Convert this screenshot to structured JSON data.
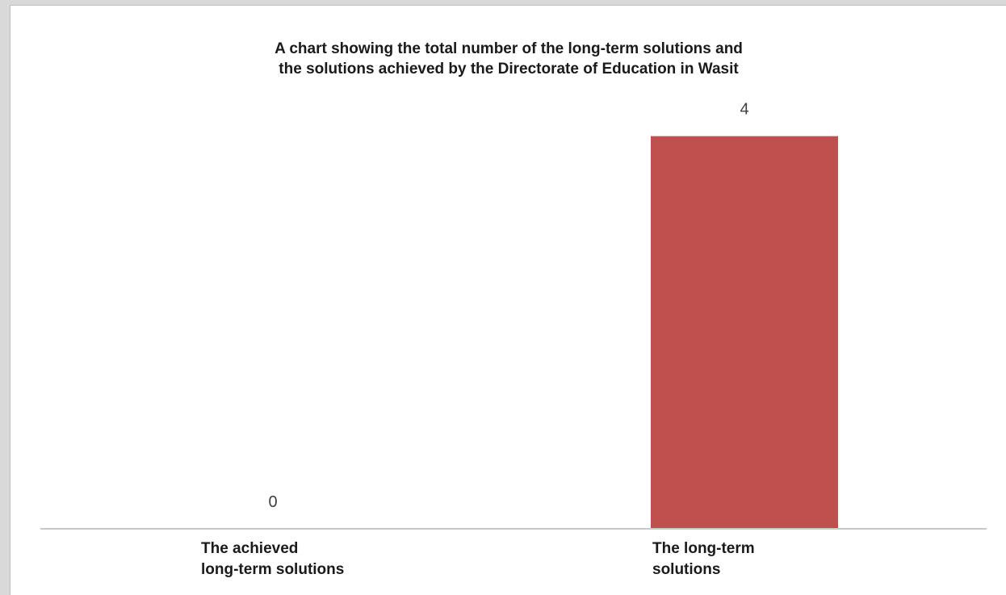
{
  "chart_data": {
    "type": "bar",
    "title": "A chart showing the total number of the long-term solutions and\nthe solutions achieved  by the Directorate of  Education in Wasit",
    "categories": [
      "The achieved\nlong-term solutions",
      "The long-term\nsolutions"
    ],
    "values": [
      0,
      4
    ],
    "data_labels": [
      "0",
      "4"
    ],
    "xlabel": "",
    "ylabel": "",
    "ylim": [
      0,
      4.4
    ],
    "grid": false,
    "legend": "none",
    "colors": [
      "#c0504d",
      "#c0504d"
    ]
  }
}
